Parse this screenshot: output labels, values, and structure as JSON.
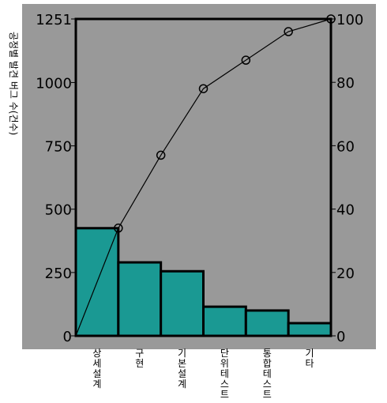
{
  "chart_data": {
    "type": "bar",
    "subtype": "pareto",
    "title": "",
    "ylabel": "공정별 발견 버그 수(건수)",
    "xlabel": "",
    "categories": [
      "상세설계",
      "구현",
      "기본설계",
      "단위테스트",
      "통합테스트",
      "기타"
    ],
    "values": [
      425,
      290,
      255,
      115,
      100,
      50
    ],
    "cumulative_percent": [
      0,
      34,
      57,
      78,
      87,
      96,
      100
    ],
    "ylim": [
      0,
      1251
    ],
    "y_ticks": [
      0,
      250,
      500,
      750,
      1000,
      1251
    ],
    "y_tick_labels": [
      "0",
      "250",
      "500",
      "750",
      "1000",
      "1251"
    ],
    "y2lim": [
      0,
      100
    ],
    "y2_ticks": [
      0,
      20,
      40,
      60,
      80,
      100
    ],
    "y2_tick_labels": [
      "0",
      "20",
      "40",
      "60",
      "80",
      "100"
    ],
    "grid": false,
    "colors": {
      "background": "#999999",
      "bar": "#1a9993",
      "line": "#000000"
    }
  }
}
